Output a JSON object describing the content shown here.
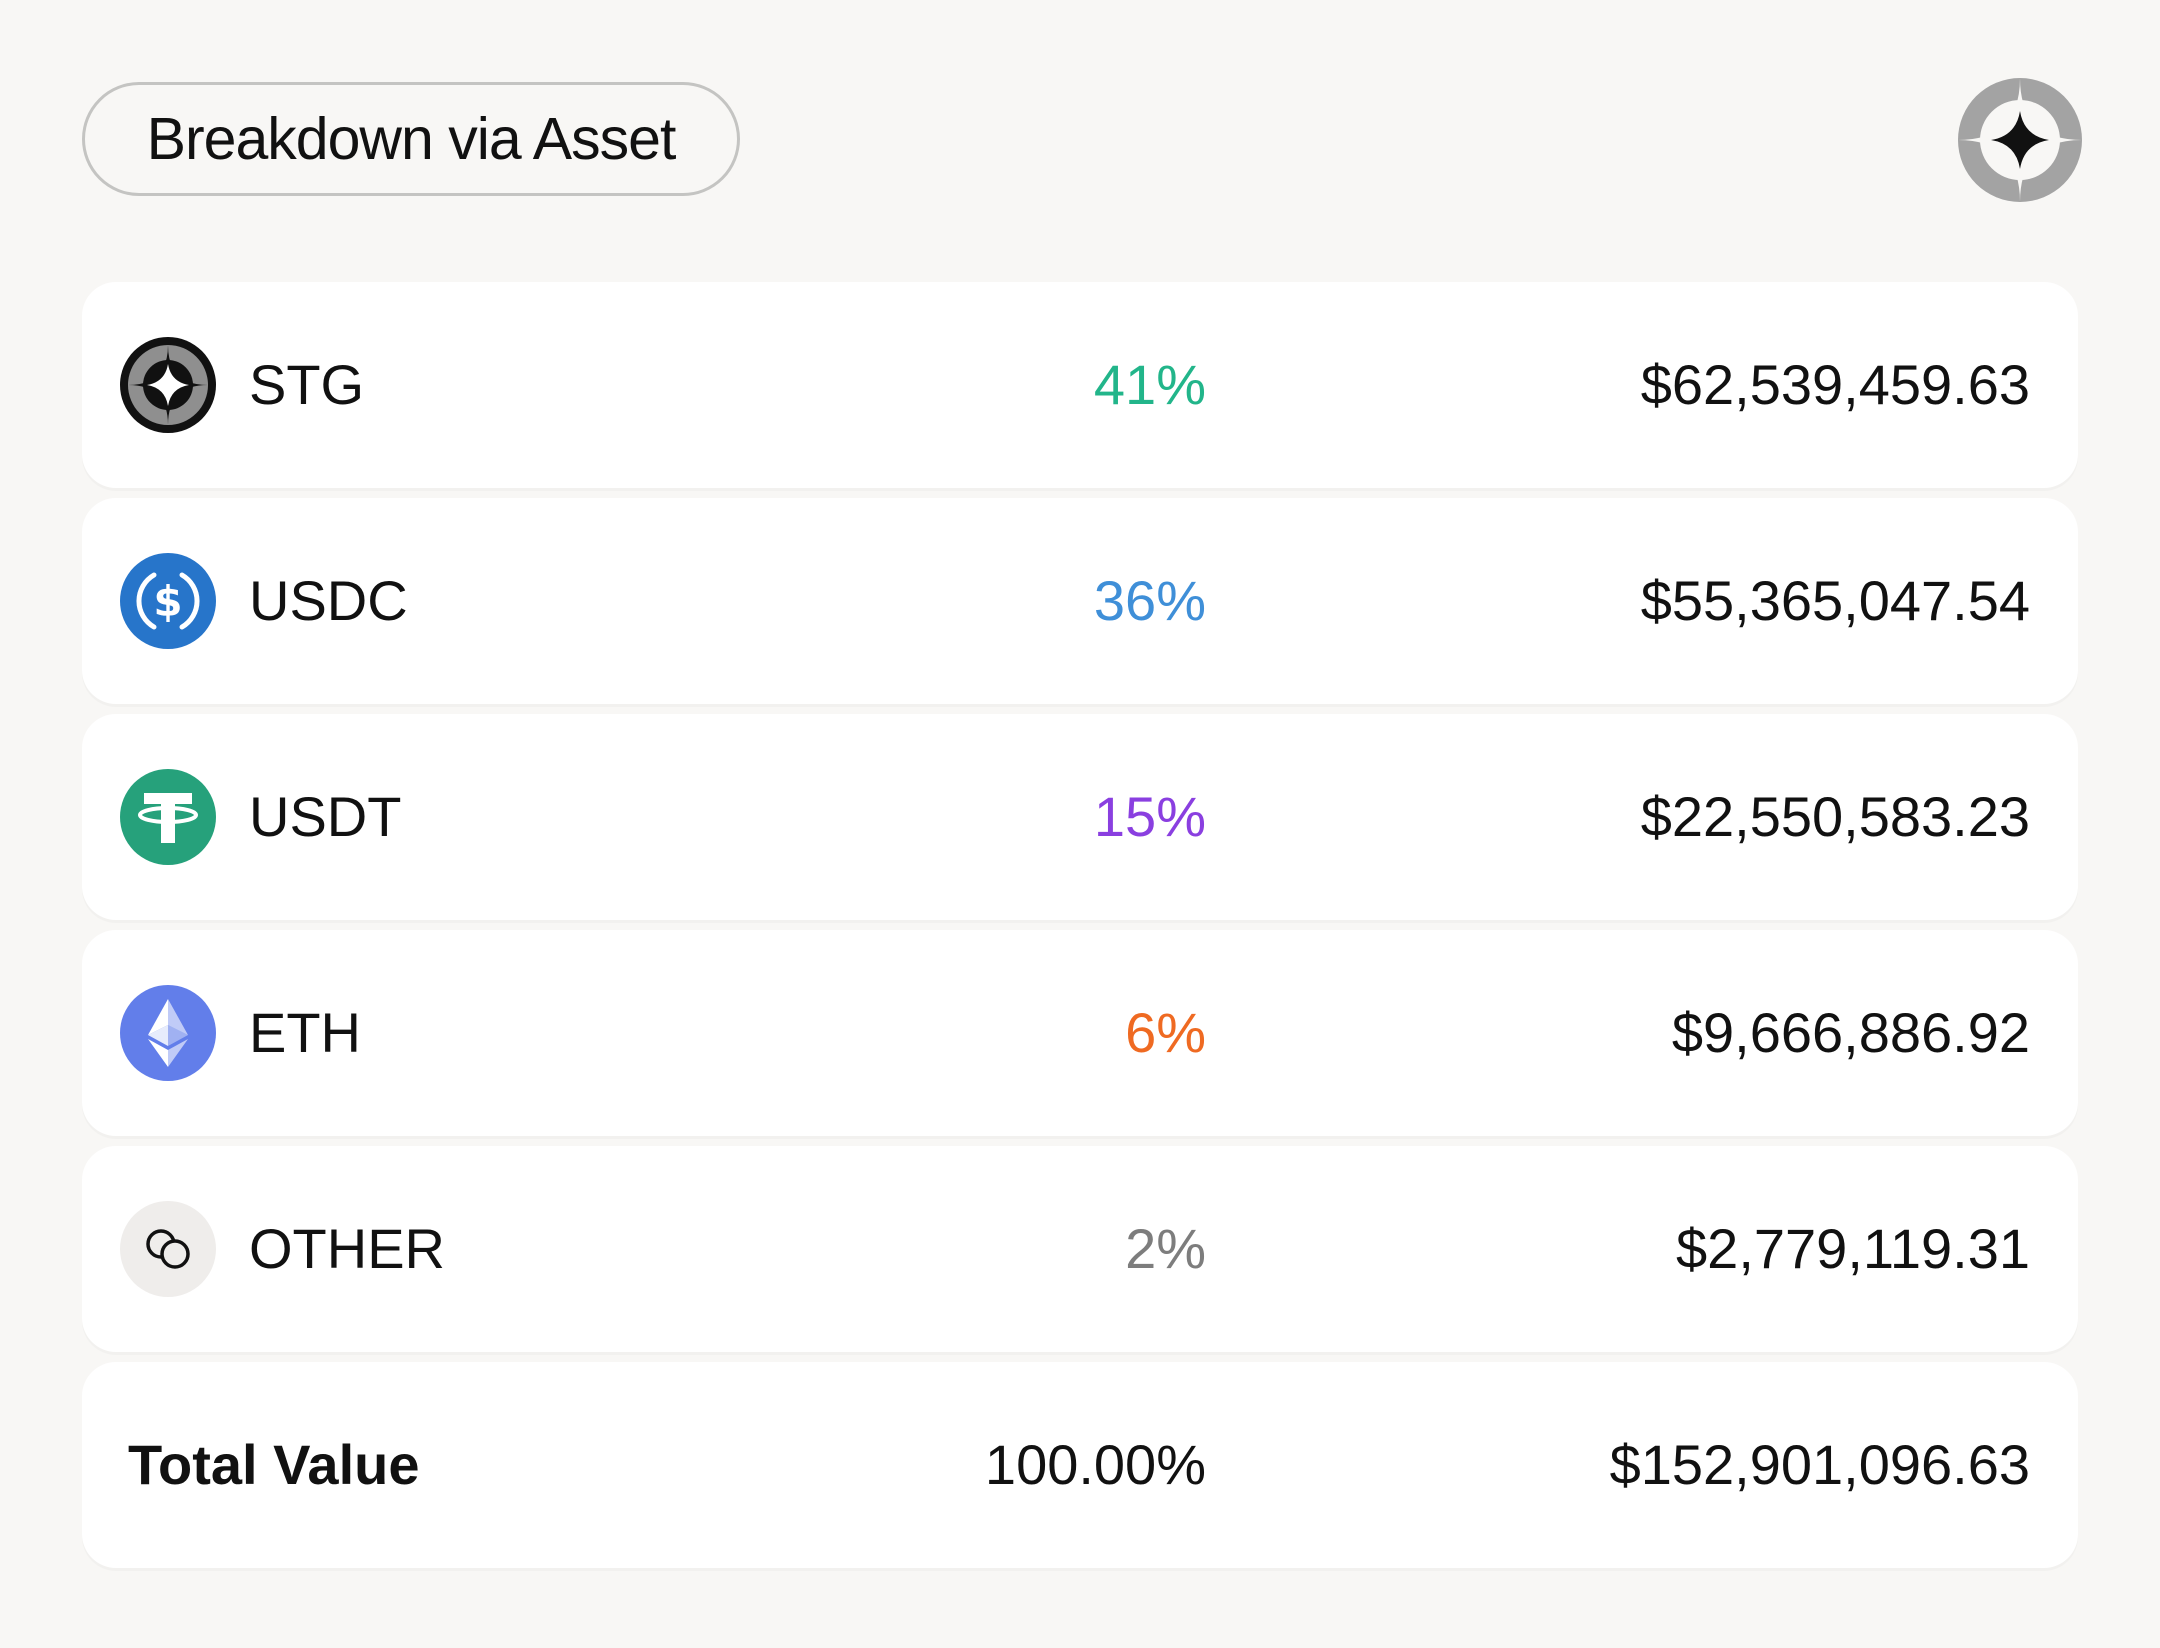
{
  "header": {
    "title": "Breakdown via Asset",
    "logo_icon": "stargate-logo-icon"
  },
  "assets": [
    {
      "symbol": "STG",
      "percent": "41%",
      "amount": "$62,539,459.63",
      "percent_color": "#22b58a",
      "icon": "stg-icon"
    },
    {
      "symbol": "USDC",
      "percent": "36%",
      "amount": "$55,365,047.54",
      "percent_color": "#3f8fd8",
      "icon": "usdc-icon"
    },
    {
      "symbol": "USDT",
      "percent": "15%",
      "amount": "$22,550,583.23",
      "percent_color": "#8a3fe0",
      "icon": "usdt-icon"
    },
    {
      "symbol": "ETH",
      "percent": "6%",
      "amount": "$9,666,886.92",
      "percent_color": "#ef6a22",
      "icon": "eth-icon"
    },
    {
      "symbol": "OTHER",
      "percent": "2%",
      "amount": "$2,779,119.31",
      "percent_color": "#7d7d7d",
      "icon": "coins-icon"
    }
  ],
  "total": {
    "label": "Total Value",
    "percent": "100.00%",
    "amount": "$152,901,096.63"
  }
}
